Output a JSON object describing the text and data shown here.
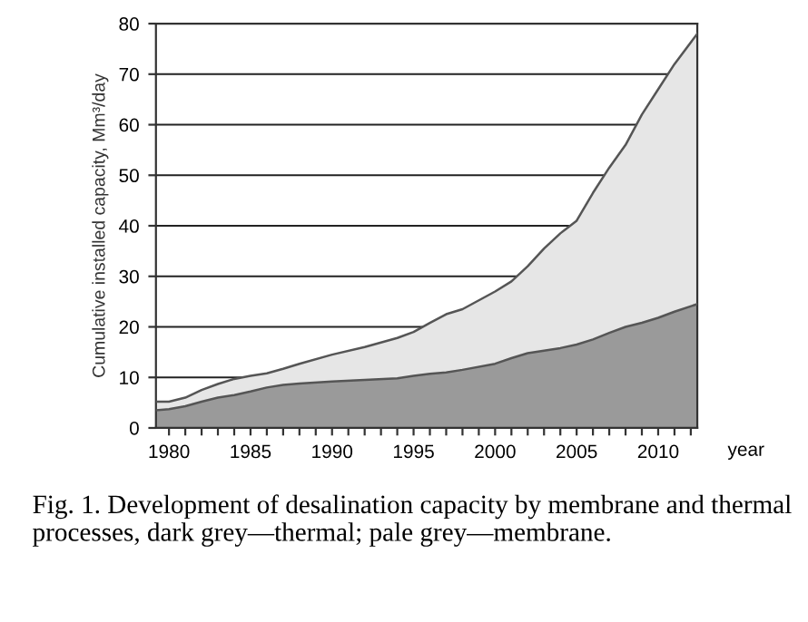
{
  "chart_data": {
    "type": "area",
    "stacked": true,
    "ylabel": "Cumulative installed capacity, Mm³/day",
    "xlabel": "year",
    "annotations": [
      "Fig. 1. Development of desalination capacity by membrane and thermal processes, dark grey—thermal; pale grey—membrane."
    ],
    "x": [
      1979.2,
      1980,
      1981,
      1982,
      1983,
      1984,
      1985,
      1986,
      1987,
      1988,
      1990,
      1992,
      1994,
      1995,
      1996,
      1997,
      1998,
      2000,
      2001,
      2002,
      2003,
      2004,
      2005,
      2006,
      2007,
      2008,
      2009,
      2010,
      2011,
      2012.4
    ],
    "series": [
      {
        "color": "#9a9a9a",
        "values": [
          3.5,
          3.7,
          4.3,
          5.2,
          6,
          6.5,
          7.2,
          8,
          8.5,
          8.8,
          9.2,
          9.5,
          9.8,
          10.3,
          10.7,
          11,
          11.5,
          12.7,
          13.8,
          14.8,
          15.3,
          15.8,
          16.5,
          17.5,
          18.8,
          20,
          20.8,
          21.8,
          23,
          24.5
        ]
      },
      {
        "color": "#e6e6e6",
        "values": [
          1.7,
          1.5,
          1.7,
          2.3,
          2.7,
          3.2,
          3.1,
          2.8,
          3.2,
          3.9,
          5.3,
          6.5,
          8,
          8.7,
          10.1,
          11.5,
          12,
          14.3,
          15.2,
          17.2,
          20.2,
          22.7,
          24.5,
          29,
          32.7,
          36,
          41.2,
          45.2,
          49,
          53.5
        ]
      }
    ],
    "xlim": [
      1979.2,
      2012.4
    ],
    "ylim": [
      0,
      80
    ],
    "xticks": [
      1980,
      {
        "value": 1981,
        "label": null
      },
      {
        "value": 1982,
        "label": null
      },
      {
        "value": 1983,
        "label": null
      },
      {
        "value": 1984,
        "label": null
      },
      1985,
      {
        "value": 1986,
        "label": null
      },
      {
        "value": 1987,
        "label": null
      },
      {
        "value": 1988,
        "label": null
      },
      {
        "value": 1989,
        "label": null
      },
      1990,
      {
        "value": 1991,
        "label": null
      },
      {
        "value": 1992,
        "label": null
      },
      {
        "value": 1993,
        "label": null
      },
      {
        "value": 1994,
        "label": null
      },
      1995,
      {
        "value": 1996,
        "label": null
      },
      {
        "value": 1997,
        "label": null
      },
      {
        "value": 1998,
        "label": null
      },
      {
        "value": 1999,
        "label": null
      },
      2000,
      {
        "value": 2001,
        "label": null
      },
      {
        "value": 2002,
        "label": null
      },
      {
        "value": 2003,
        "label": null
      },
      {
        "value": 2004,
        "label": null
      },
      2005,
      {
        "value": 2006,
        "label": null
      },
      {
        "value": 2007,
        "label": null
      },
      {
        "value": 2008,
        "label": null
      },
      {
        "value": 2009,
        "label": null
      },
      2010,
      {
        "value": 2011,
        "label": null
      },
      {
        "value": 2012,
        "label": null
      }
    ],
    "yticks": [
      0,
      10,
      20,
      30,
      40,
      50,
      60,
      70,
      80
    ],
    "grid": "y",
    "legend": false
  }
}
